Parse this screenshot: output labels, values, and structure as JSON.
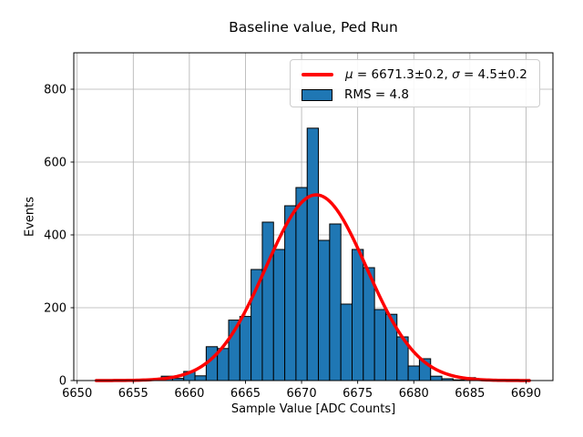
{
  "figure": {
    "title": "Baseline value, Ped Run"
  },
  "chart_data": {
    "type": "bar",
    "subtype": "histogram",
    "title": "Baseline value, Ped Run",
    "xlabel": "Sample Value [ADC Counts]",
    "ylabel": "Events",
    "xlim": [
      6649.7,
      6692.4
    ],
    "ylim": [
      0,
      900
    ],
    "x_ticks": [
      6650,
      6655,
      6660,
      6665,
      6670,
      6675,
      6680,
      6685,
      6690
    ],
    "y_ticks": [
      0,
      200,
      400,
      600,
      800
    ],
    "grid": true,
    "grid_color": "#b0b0b0",
    "bin_width": 1,
    "bin_centers": [
      6657,
      6658,
      6659,
      6660,
      6661,
      6662,
      6663,
      6664,
      6665,
      6666,
      6667,
      6668,
      6669,
      6670,
      6671,
      6672,
      6673,
      6674,
      6675,
      6676,
      6677,
      6678,
      6679,
      6680,
      6681,
      6682,
      6683,
      6684,
      6685,
      6686
    ],
    "counts": [
      3,
      12,
      6,
      25,
      13,
      93,
      88,
      166,
      176,
      305,
      435,
      360,
      480,
      530,
      693,
      385,
      430,
      210,
      360,
      310,
      195,
      182,
      120,
      40,
      60,
      12,
      5,
      2,
      8,
      3
    ],
    "bar_color": "#1f77b4",
    "bar_edge_color": "#000000",
    "fit": {
      "type": "gaussian",
      "mu": 6671.3,
      "mu_err": 0.2,
      "sigma": 4.5,
      "sigma_err": 0.2,
      "amplitude": 510,
      "x_start": 6651.7,
      "x_end": 6690.4,
      "color": "#ff0000",
      "line_width": 3.5
    },
    "rms": 4.8,
    "legend": {
      "position": "upper right",
      "entries": [
        {
          "swatch": "line",
          "color": "#ff0000",
          "label": "μ = 6671.3±0.2, σ = 4.5±0.2",
          "label_parts": [
            {
              "text": "μ",
              "italic": true
            },
            {
              "text": " = 6671.3±0.2, ",
              "italic": false
            },
            {
              "text": "σ",
              "italic": true
            },
            {
              "text": " = 4.5±0.2",
              "italic": false
            }
          ]
        },
        {
          "swatch": "patch",
          "color": "#1f77b4",
          "label": "RMS = 4.8",
          "label_parts": [
            {
              "text": "RMS = 4.8",
              "italic": false
            }
          ]
        }
      ]
    }
  }
}
